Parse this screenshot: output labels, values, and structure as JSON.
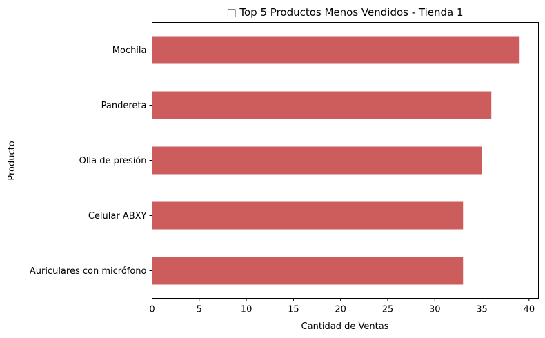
{
  "chart_data": {
    "type": "bar",
    "orientation": "horizontal",
    "title": "□ Top 5 Productos Menos Vendidos - Tienda 1",
    "xlabel": "Cantidad de Ventas",
    "ylabel": "Producto",
    "categories": [
      "Mochila",
      "Pandereta",
      "Olla de presión",
      "Celular ABXY",
      "Auriculares con micrófono"
    ],
    "values": [
      39,
      36,
      35,
      33,
      33
    ],
    "xlim": [
      0,
      41
    ],
    "xticks": [
      0,
      5,
      10,
      15,
      20,
      25,
      30,
      35,
      40
    ],
    "grid": false,
    "bar_color": "#cd5c5c"
  }
}
